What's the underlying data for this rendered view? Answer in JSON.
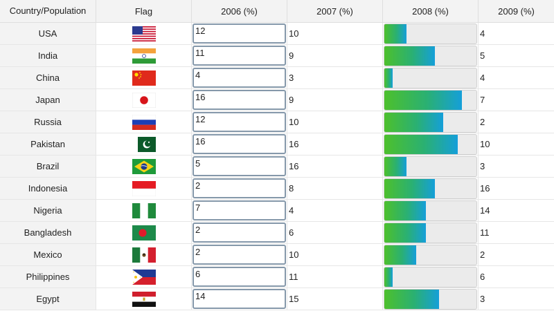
{
  "columns": [
    "Country/Population",
    "Flag",
    "2006 (%)",
    "2007 (%)",
    "2008 (%)",
    "2009 (%)"
  ],
  "bar_max": 19,
  "rows": [
    {
      "country": "USA",
      "flag": "usa-flag-icon",
      "y2006": "12",
      "y2007": "10",
      "y2008": 4.6,
      "y2009": "4"
    },
    {
      "country": "India",
      "flag": "india-flag-icon",
      "y2006": "11",
      "y2007": "9",
      "y2008": 10.4,
      "y2009": "5"
    },
    {
      "country": "China",
      "flag": "china-flag-icon",
      "y2006": "4",
      "y2007": "3",
      "y2008": 1.7,
      "y2009": "4"
    },
    {
      "country": "Japan",
      "flag": "japan-flag-icon",
      "y2006": "16",
      "y2007": "9",
      "y2008": 16,
      "y2009": "7"
    },
    {
      "country": "Russia",
      "flag": "russia-flag-icon",
      "y2006": "12",
      "y2007": "10",
      "y2008": 12.2,
      "y2009": "2"
    },
    {
      "country": "Pakistan",
      "flag": "pakistan-flag-icon",
      "y2006": "16",
      "y2007": "16",
      "y2008": 15.2,
      "y2009": "10"
    },
    {
      "country": "Brazil",
      "flag": "brazil-flag-icon",
      "y2006": "5",
      "y2007": "16",
      "y2008": 4.6,
      "y2009": "3"
    },
    {
      "country": "Indonesia",
      "flag": "indonesia-flag-icon",
      "y2006": "2",
      "y2007": "8",
      "y2008": 10.4,
      "y2009": "16"
    },
    {
      "country": "Nigeria",
      "flag": "nigeria-flag-icon",
      "y2006": "7",
      "y2007": "4",
      "y2008": 8.5,
      "y2009": "14"
    },
    {
      "country": "Bangladesh",
      "flag": "bangladesh-flag-icon",
      "y2006": "2",
      "y2007": "6",
      "y2008": 8.5,
      "y2009": "11"
    },
    {
      "country": "Mexico",
      "flag": "mexico-flag-icon",
      "y2006": "2",
      "y2007": "10",
      "y2008": 6.6,
      "y2009": "2"
    },
    {
      "country": "Philippines",
      "flag": "philippines-flag-icon",
      "y2006": "6",
      "y2007": "11",
      "y2008": 1.7,
      "y2009": "6"
    },
    {
      "country": "Egypt",
      "flag": "egypt-flag-icon",
      "y2006": "14",
      "y2007": "15",
      "y2008": 11.3,
      "y2009": "3"
    }
  ]
}
